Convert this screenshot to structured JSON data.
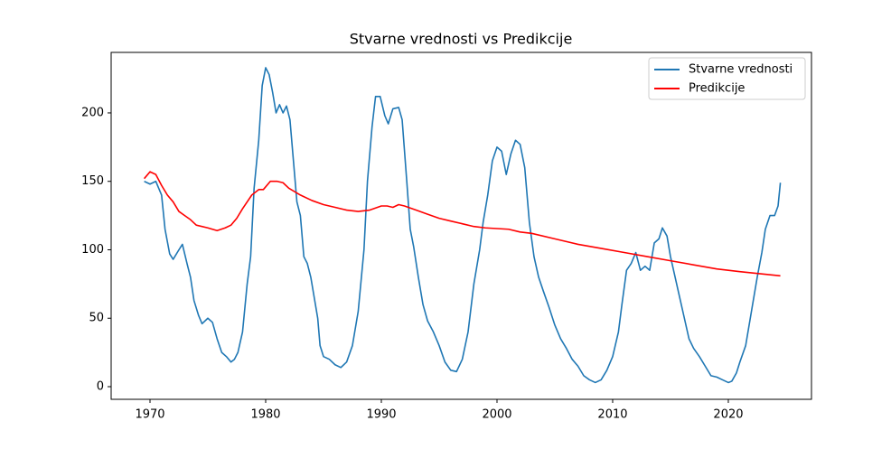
{
  "chart_data": {
    "type": "line",
    "title": "Stvarne vrednosti vs Predikcije",
    "xlim": [
      1966.64,
      2027.19
    ],
    "ylim": [
      -9.24,
      244.2
    ],
    "xticks": [
      1970,
      1980,
      1990,
      2000,
      2010,
      2020
    ],
    "yticks": [
      0,
      50,
      100,
      150,
      200
    ],
    "legend": "upper right",
    "series": [
      {
        "name": "Stvarne vrednosti",
        "color": "#1f77b4",
        "x": [
          1969.5,
          1970,
          1970.5,
          1971,
          1971.3,
          1971.7,
          1972,
          1972.5,
          1972.8,
          1973.2,
          1973.5,
          1973.8,
          1974.2,
          1974.5,
          1975,
          1975.4,
          1975.8,
          1976.2,
          1976.6,
          1977,
          1977.3,
          1977.6,
          1978,
          1978.4,
          1978.7,
          1979,
          1979.4,
          1979.7,
          1980,
          1980.3,
          1980.6,
          1980.9,
          1981.2,
          1981.5,
          1981.8,
          1982.1,
          1982.4,
          1982.7,
          1983,
          1983.3,
          1983.6,
          1983.9,
          1984.2,
          1984.5,
          1984.7,
          1985,
          1985.5,
          1986,
          1986.5,
          1987,
          1987.5,
          1988,
          1988.5,
          1988.8,
          1989.2,
          1989.5,
          1989.9,
          1990.3,
          1990.6,
          1991,
          1991.5,
          1991.8,
          1992.2,
          1992.5,
          1992.8,
          1993.2,
          1993.6,
          1994,
          1994.5,
          1995,
          1995.5,
          1996,
          1996.5,
          1997,
          1997.5,
          1998,
          1998.5,
          1998.8,
          1999.2,
          1999.6,
          2000,
          2000.4,
          2000.8,
          2001.2,
          2001.6,
          2002,
          2002.4,
          2002.8,
          2003.2,
          2003.6,
          2004,
          2004.5,
          2005,
          2005.5,
          2006,
          2006.5,
          2007,
          2007.5,
          2008,
          2008.5,
          2009,
          2009.5,
          2010,
          2010.5,
          2010.8,
          2011.2,
          2011.6,
          2012,
          2012.4,
          2012.8,
          2013.2,
          2013.6,
          2014,
          2014.3,
          2014.7,
          2015,
          2015.4,
          2015.8,
          2016.2,
          2016.6,
          2017,
          2017.5,
          2018,
          2018.5,
          2019,
          2019.5,
          2020,
          2020.3,
          2020.7,
          2021,
          2021.5,
          2022,
          2022.5,
          2022.9,
          2023.2,
          2023.6,
          2024,
          2024.3,
          2024.5
        ],
        "values": [
          150,
          148,
          150,
          140,
          115,
          97,
          93,
          100,
          104,
          90,
          80,
          63,
          52,
          46,
          50,
          47,
          35,
          25,
          22,
          18,
          20,
          25,
          40,
          75,
          95,
          145,
          180,
          220,
          233,
          228,
          215,
          200,
          206,
          200,
          205,
          195,
          165,
          135,
          125,
          95,
          90,
          80,
          65,
          50,
          30,
          22,
          20,
          16,
          14,
          18,
          30,
          55,
          100,
          150,
          190,
          212,
          212,
          198,
          192,
          203,
          204,
          195,
          150,
          115,
          102,
          80,
          60,
          48,
          40,
          30,
          18,
          12,
          11,
          20,
          40,
          75,
          100,
          120,
          140,
          165,
          175,
          172,
          155,
          170,
          180,
          177,
          160,
          120,
          95,
          80,
          70,
          58,
          45,
          35,
          28,
          20,
          15,
          8,
          5,
          3,
          5,
          12,
          22,
          40,
          60,
          85,
          90,
          98,
          85,
          88,
          85,
          105,
          108,
          116,
          110,
          95,
          80,
          65,
          50,
          35,
          28,
          22,
          15,
          8,
          7,
          5,
          3,
          4,
          10,
          18,
          30,
          55,
          80,
          98,
          115,
          125,
          125,
          132,
          149
        ]
      },
      {
        "name": "Predikcije",
        "color": "#ff0000",
        "x": [
          1969.5,
          1970,
          1970.5,
          1971,
          1971.5,
          1972,
          1972.5,
          1973,
          1973.5,
          1974,
          1975,
          1975.8,
          1976.5,
          1977,
          1977.5,
          1978,
          1978.8,
          1979.4,
          1979.8,
          1980.4,
          1981,
          1981.5,
          1982,
          1983,
          1984,
          1985,
          1986,
          1987,
          1988,
          1989,
          1990,
          1990.5,
          1991,
          1991.5,
          1992,
          1993,
          1994,
          1995,
          1996,
          1997,
          1998,
          1999,
          2000,
          2001,
          2002,
          2003,
          2005,
          2007,
          2009,
          2011,
          2013,
          2015,
          2017,
          2019,
          2021,
          2024.5
        ],
        "values": [
          152,
          157,
          155,
          147,
          140,
          135,
          128,
          125,
          122,
          118,
          116,
          114,
          116,
          118,
          123,
          130,
          140,
          144,
          144,
          150,
          150,
          149,
          145,
          140,
          136,
          133,
          131,
          129,
          128,
          129,
          132,
          132,
          131,
          133,
          132,
          129,
          126,
          123,
          121,
          119,
          117,
          116,
          115.5,
          115,
          113,
          112,
          108,
          104,
          101,
          98,
          95,
          92,
          89,
          86,
          84,
          81
        ]
      }
    ]
  }
}
